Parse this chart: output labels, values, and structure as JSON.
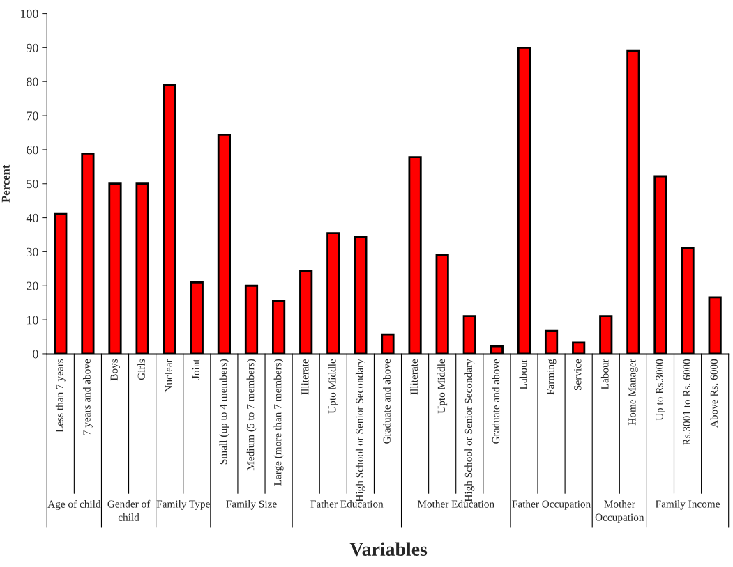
{
  "chart_data": {
    "type": "bar",
    "xlabel": "Variables",
    "ylabel": "Percent",
    "categories": [
      "Less than 7 years",
      "7 years and above",
      "Boys",
      "Girls",
      "Nuclear",
      "Joint",
      "Small (up to 4 members)",
      "Medium (5 to 7 members)",
      "Large (more than 7 members)",
      "Illiterate",
      "Upto Middle",
      "High School or Senior Secondary",
      "Graduate and above",
      "Illiterate",
      "Upto Middle",
      "High School or Senior Secondary",
      "Graduate and above",
      "Labour",
      "Farming",
      "Service",
      "Labour",
      "Home Manager",
      "Up to Rs.3000",
      "Rs.3001 to Rs. 6000",
      "Above Rs. 6000"
    ],
    "values": [
      41.1,
      58.9,
      50,
      50,
      79,
      21,
      64.4,
      20,
      15.5,
      24.4,
      35.5,
      34.3,
      5.7,
      57.8,
      29,
      11.1,
      2.2,
      90,
      6.7,
      3.3,
      11.1,
      89,
      52.2,
      31.1,
      16.6
    ],
    "color": "#ff0000",
    "ylim": [
      0,
      100
    ],
    "yticks": [
      0,
      10,
      20,
      30,
      40,
      50,
      60,
      70,
      80,
      90,
      100
    ],
    "grid": false,
    "legend": false,
    "annotations": [
      "Age of child",
      "Gender of child",
      "Family Type",
      "Family Size",
      "Father Education",
      "Mother Education",
      "Father Occupation",
      "Mother Occupation",
      "Family Income"
    ]
  }
}
